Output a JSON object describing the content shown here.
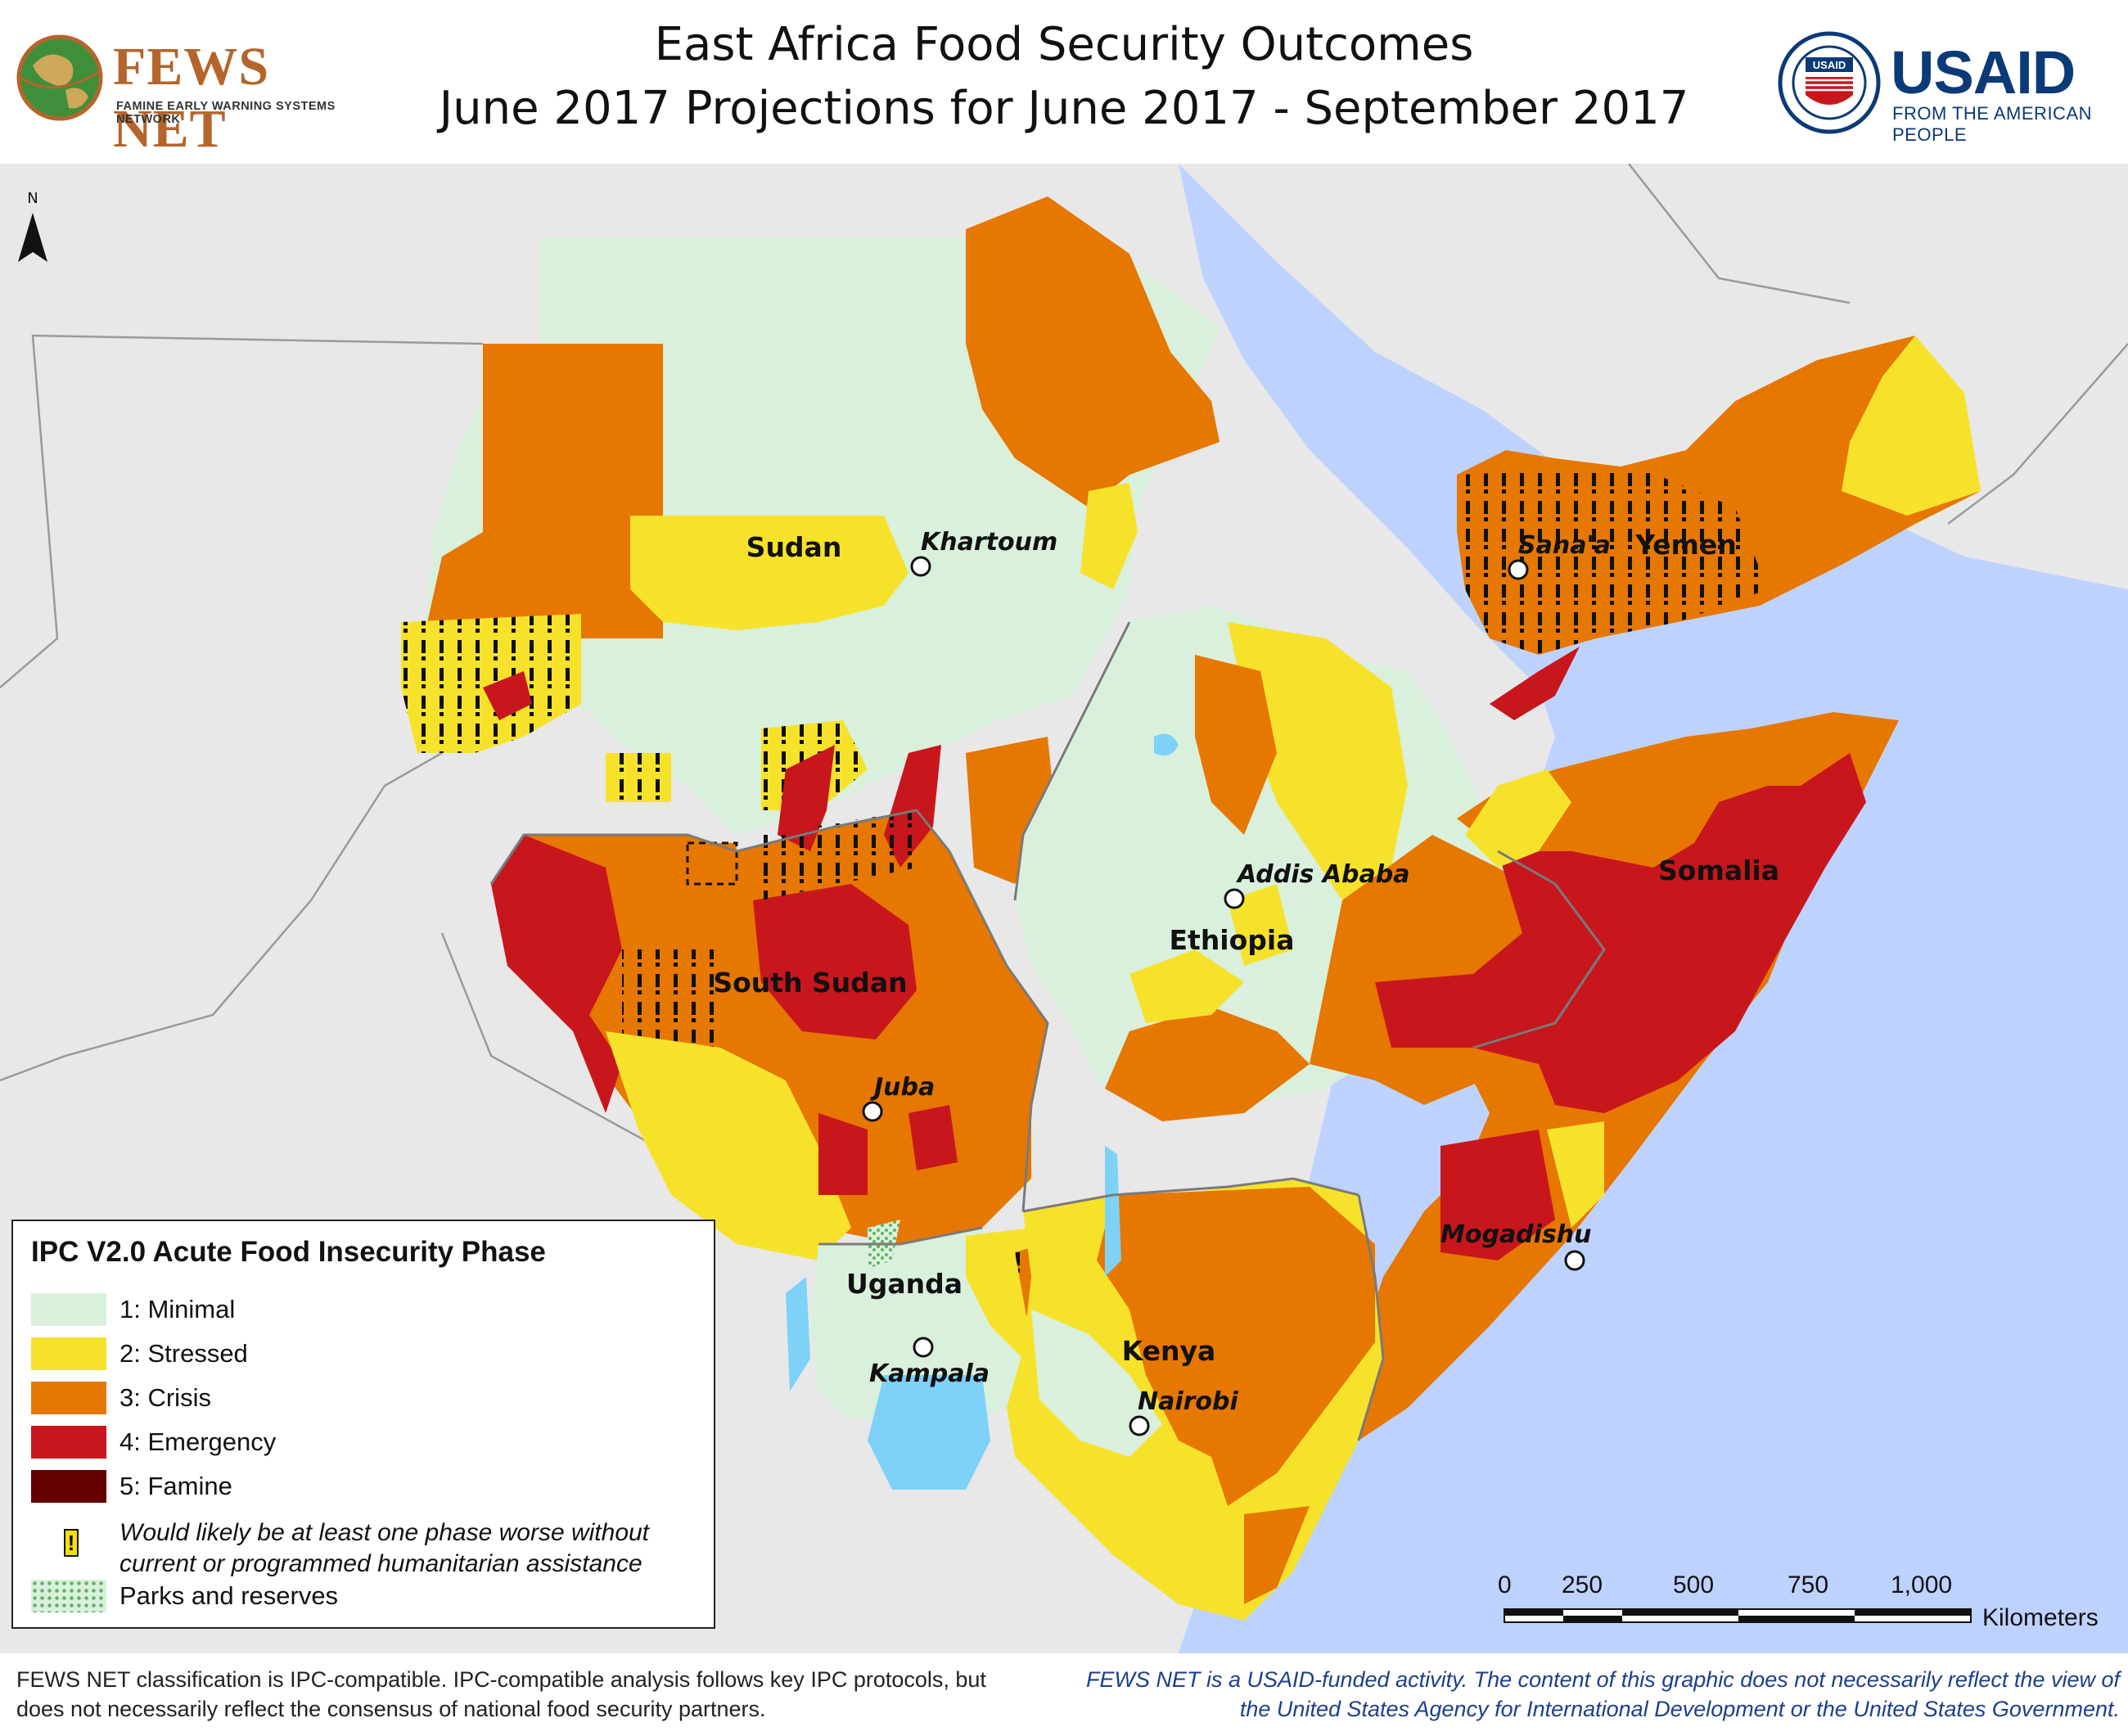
{
  "header": {
    "title_line1": "East Africa Food Security Outcomes",
    "title_line2": "June 2017 Projections for June 2017 - September 2017"
  },
  "logos": {
    "fews": {
      "name": "FEWS NET",
      "subtitle": "FAMINE EARLY WARNING SYSTEMS NETWORK"
    },
    "usaid": {
      "name": "USAID",
      "subtitle": "FROM THE AMERICAN PEOPLE",
      "seal_text": "USAID"
    }
  },
  "map": {
    "north_label": "N",
    "countries": [
      "Sudan",
      "South Sudan",
      "Ethiopia",
      "Somalia",
      "Yemen",
      "Uganda",
      "Kenya"
    ],
    "cities": [
      "Khartoum",
      "Sana'a",
      "Addis Ababa",
      "Juba",
      "Mogadishu",
      "Kampala",
      "Nairobi"
    ],
    "colors": {
      "ocean": "#bed2ff",
      "land_outside": "#e8e8e8",
      "minimal": "#d9f0dc",
      "stressed": "#f7e22b",
      "crisis": "#e67700",
      "emergency": "#c8161d",
      "famine": "#640000",
      "lake": "#7ed2f7",
      "parks": "#8fd08f"
    }
  },
  "legend": {
    "title": "IPC V2.0 Acute Food Insecurity Phase",
    "phases": [
      {
        "label": "1: Minimal",
        "color": "#d9f0dc"
      },
      {
        "label": "2: Stressed",
        "color": "#f7e22b"
      },
      {
        "label": "3: Crisis",
        "color": "#e67700"
      },
      {
        "label": "4: Emergency",
        "color": "#c8161d"
      },
      {
        "label": "5: Famine",
        "color": "#640000"
      }
    ],
    "assistance_symbol": "!",
    "assistance_note": "Would likely be at least one phase worse without current or programmed humanitarian assistance",
    "parks_label": "Parks and reserves"
  },
  "scale": {
    "ticks": [
      "0",
      "250",
      "500",
      "750",
      "1,000"
    ],
    "unit": "Kilometers"
  },
  "footer": {
    "left": "FEWS NET classification is IPC-compatible. IPC-compatible analysis follows key IPC protocols, but does not necessarily reflect the consensus of national food security partners.",
    "right": "FEWS NET is a USAID-funded activity. The content of this graphic does not necessarily reflect the view of the United States Agency for International Development or the United States Government."
  }
}
